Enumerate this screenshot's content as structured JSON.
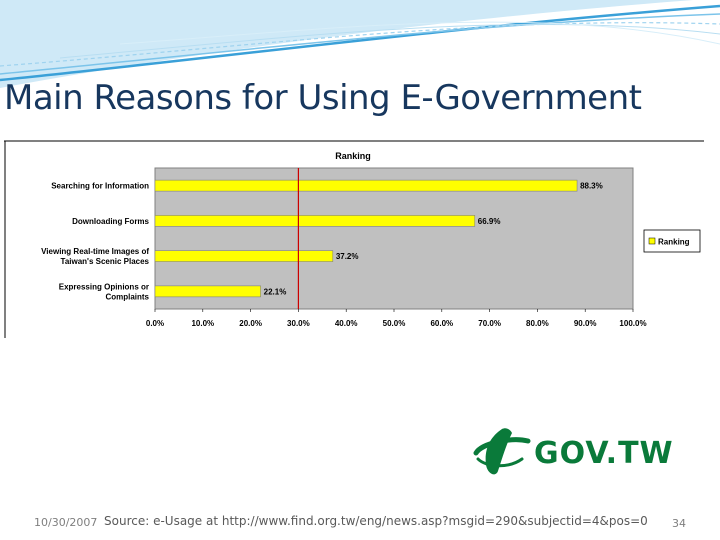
{
  "slide": {
    "title": "Main Reasons for Using E-Government",
    "date": "10/30/2007",
    "source": "Source: e-Usage at http://www.find.org.tw/eng/news.asp?msgid=290&subjectid=4&pos=0",
    "page_number": "34",
    "logo_text": "GOV.TW"
  },
  "chart_data": {
    "type": "bar",
    "orientation": "horizontal",
    "title": "Ranking",
    "categories": [
      [
        "Searching for Information"
      ],
      [
        "Downloading Forms"
      ],
      [
        "Viewing Real-time Images of",
        "Taiwan's Scenic Places"
      ],
      [
        "Expressing Opinions or",
        "Complaints"
      ]
    ],
    "series": [
      {
        "name": "Ranking",
        "values": [
          88.3,
          66.9,
          37.2,
          22.1
        ],
        "color": "#ffff00"
      }
    ],
    "value_labels": [
      "88.3%",
      "66.9%",
      "37.2%",
      "22.1%"
    ],
    "xlim": [
      0,
      100
    ],
    "xticks": [
      "0.0%",
      "10.0%",
      "20.0%",
      "30.0%",
      "40.0%",
      "50.0%",
      "60.0%",
      "70.0%",
      "80.0%",
      "90.0%",
      "100.0%"
    ],
    "reference_line": 30,
    "reference_line_color": "#cc0000",
    "plot_background": "#c0c0c0",
    "legend": "right"
  }
}
